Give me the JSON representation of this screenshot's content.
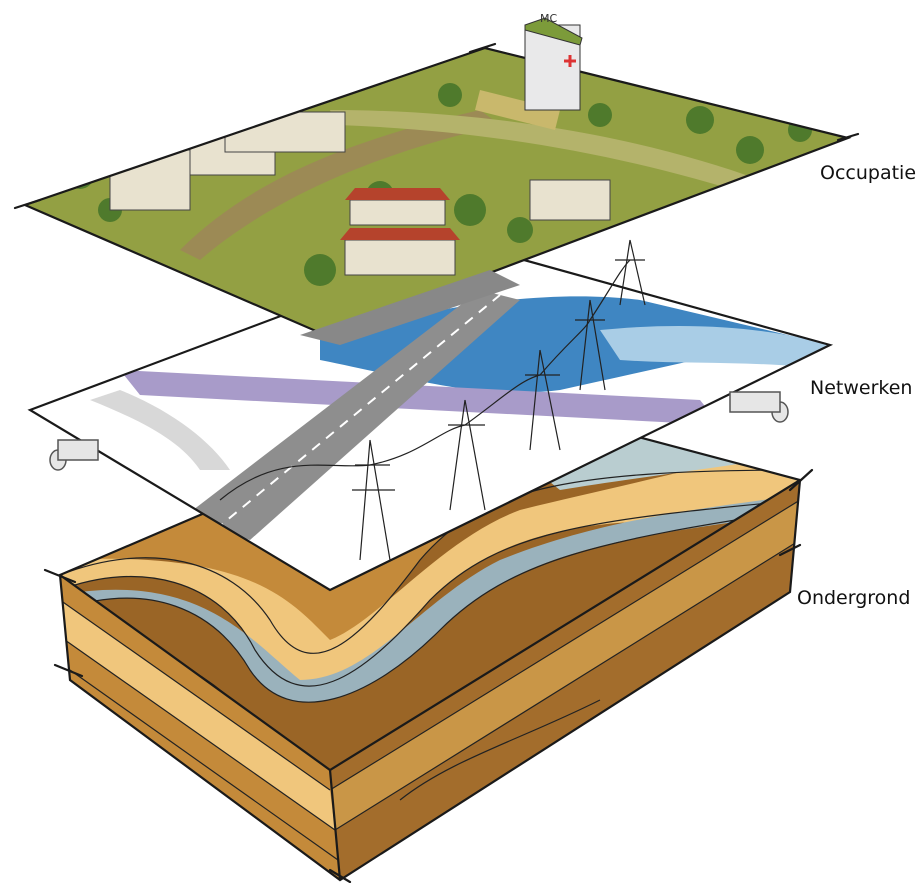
{
  "layers": [
    {
      "label": "Occupatie"
    },
    {
      "label": "Netwerken"
    },
    {
      "label": "Ondergrond"
    }
  ],
  "sign": "MC"
}
